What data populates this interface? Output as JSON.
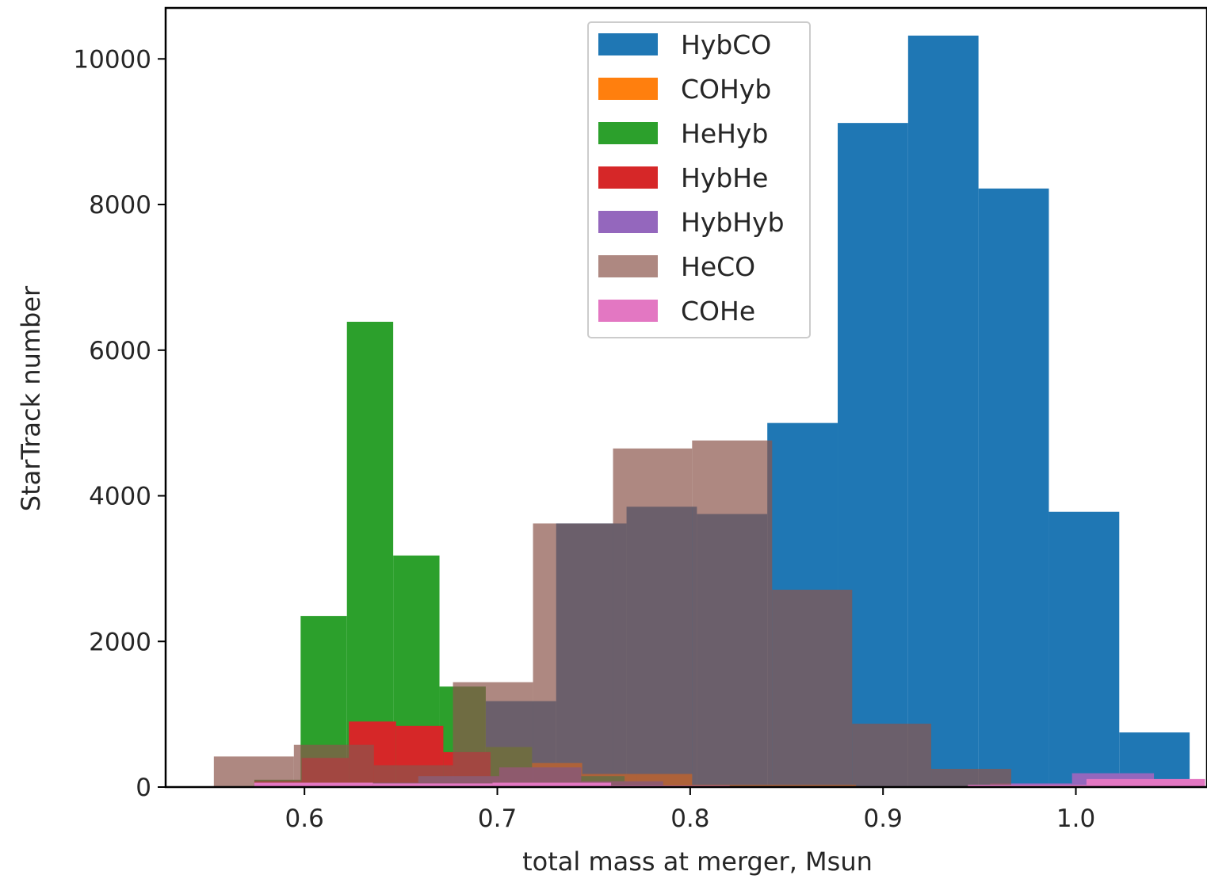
{
  "chart_data": {
    "type": "histogram",
    "xlabel": "total mass at merger, Msun",
    "ylabel": "StarTrack number",
    "xlim": [
      0.528,
      1.068
    ],
    "ylim": [
      0,
      10700
    ],
    "xticks": [
      {
        "value": 0.6,
        "label": "0.6"
      },
      {
        "value": 0.7,
        "label": "0.7"
      },
      {
        "value": 0.8,
        "label": "0.8"
      },
      {
        "value": 0.9,
        "label": "0.9"
      },
      {
        "value": 1.0,
        "label": "1.0"
      }
    ],
    "yticks": [
      {
        "value": 0,
        "label": "0"
      },
      {
        "value": 2000,
        "label": "2000"
      },
      {
        "value": 4000,
        "label": "4000"
      },
      {
        "value": 6000,
        "label": "6000"
      },
      {
        "value": 8000,
        "label": "8000"
      },
      {
        "value": 10000,
        "label": "10000"
      }
    ],
    "grid": false,
    "legend_position": "upper-center",
    "series": [
      {
        "name": "HybCO",
        "color": "#1f77b4",
        "alpha": 1.0,
        "edges": [
          0.694,
          0.7305,
          0.767,
          0.8035,
          0.84,
          0.8765,
          0.913,
          0.9495,
          0.986,
          1.0225,
          1.059
        ],
        "counts": [
          1180,
          3620,
          3850,
          3750,
          5000,
          9120,
          10320,
          8220,
          3780,
          750
        ]
      },
      {
        "name": "COHyb",
        "color": "#ff7f0e",
        "alpha": 1.0,
        "edges": [
          0.574,
          0.6025,
          0.6305,
          0.659,
          0.6875,
          0.716,
          0.744,
          0.7725,
          0.801,
          0.8295,
          0.8575,
          0.886
        ],
        "counts": [
          0,
          0,
          60,
          120,
          200,
          330,
          180,
          180,
          30,
          30,
          30
        ]
      },
      {
        "name": "HeHyb",
        "color": "#2ca02c",
        "alpha": 1.0,
        "edges": [
          0.574,
          0.598,
          0.622,
          0.646,
          0.67,
          0.694,
          0.718,
          0.742,
          0.766
        ],
        "counts": [
          100,
          2350,
          6390,
          3180,
          1380,
          550,
          250,
          150
        ]
      },
      {
        "name": "HybHe",
        "color": "#d62728",
        "alpha": 1.0,
        "edges": [
          0.574,
          0.5985,
          0.623,
          0.6475,
          0.672,
          0.6965,
          0.721
        ],
        "counts": [
          80,
          400,
          900,
          840,
          480,
          100
        ]
      },
      {
        "name": "HybHyb",
        "color": "#9467bd",
        "alpha": 1.0,
        "edges": [
          0.574,
          0.6165,
          0.659,
          0.701,
          0.7435,
          0.786,
          0.8285,
          0.871,
          0.913,
          0.9555,
          0.998,
          1.0405
        ],
        "counts": [
          30,
          60,
          150,
          270,
          80,
          0,
          0,
          0,
          0,
          50,
          190
        ]
      },
      {
        "name": "HeCO",
        "color": "#8c564b",
        "alpha": 0.7,
        "edges": [
          0.553,
          0.5945,
          0.636,
          0.677,
          0.7185,
          0.76,
          0.801,
          0.8425,
          0.884,
          0.925,
          0.9665
        ],
        "counts": [
          420,
          580,
          300,
          1440,
          3620,
          4650,
          4760,
          2710,
          870,
          250
        ]
      },
      {
        "name": "COHe",
        "color": "#e377c2",
        "alpha": 1.0,
        "edges": [
          0.574,
          0.6355,
          0.6975,
          0.759,
          0.8205,
          0.8825,
          0.944,
          1.0055,
          1.067
        ],
        "counts": [
          60,
          50,
          60,
          20,
          10,
          10,
          30,
          110
        ]
      }
    ]
  }
}
